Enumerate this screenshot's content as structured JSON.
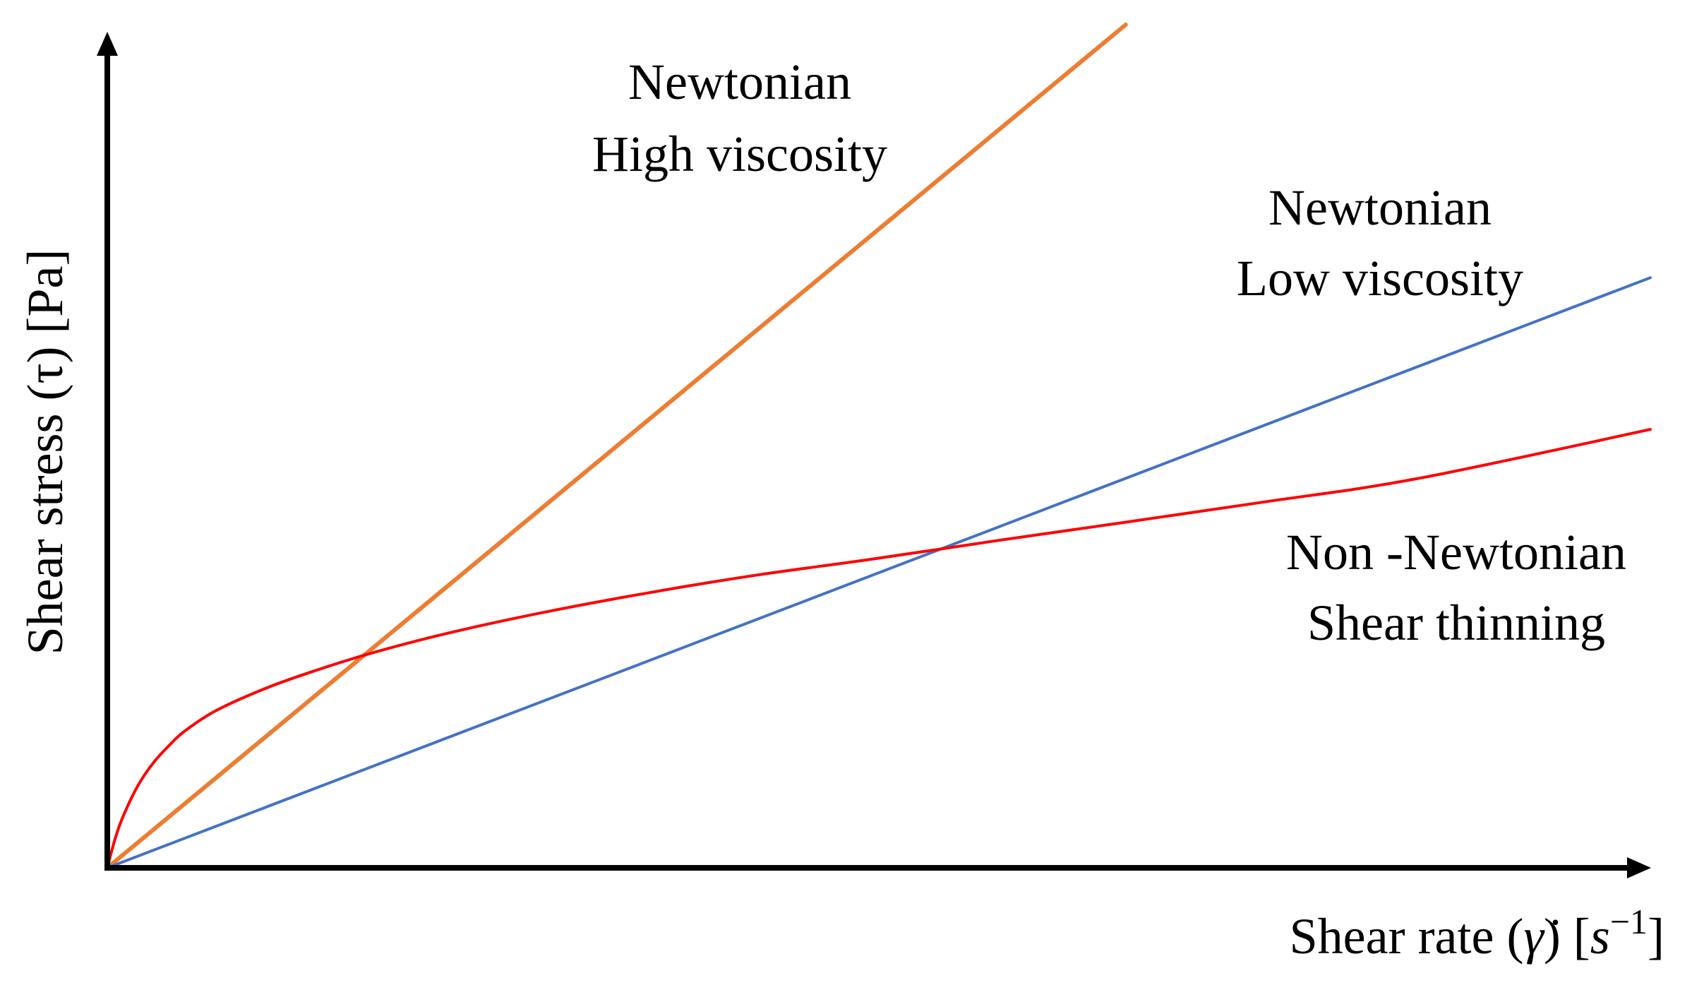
{
  "chart_data": {
    "type": "line",
    "title": "",
    "xlabel": "Shear rate (γ̇) [s⁻¹]",
    "ylabel": "Shear stress (τ) [Pa]",
    "xlabel_parts": {
      "prefix": "Shear rate (",
      "symbol": "γ̇",
      "mid": ") [",
      "unit": "s",
      "exp": "−1",
      "suffix": "]"
    },
    "xlim": [
      0,
      100
    ],
    "ylim": [
      0,
      100
    ],
    "grid": false,
    "ticks": false,
    "series": [
      {
        "name": "Newtonian High viscosity",
        "label_lines": [
          "Newtonian",
          "High viscosity"
        ],
        "color": "#ED7D31",
        "model": "linear",
        "x": [
          0,
          66
        ],
        "y": [
          0,
          100
        ]
      },
      {
        "name": "Newtonian Low viscosity",
        "label_lines": [
          "Newtonian",
          "Low viscosity"
        ],
        "color": "#4472C4",
        "model": "linear",
        "x": [
          0,
          100
        ],
        "y": [
          0,
          70
        ]
      },
      {
        "name": "Non -Newtonian Shear thinning",
        "label_lines": [
          "Non -Newtonian",
          "Shear thinning"
        ],
        "color": "#FF0000",
        "model": "curve",
        "x": [
          0,
          0.5,
          1,
          2,
          3,
          4,
          5,
          7,
          10,
          13,
          17,
          22,
          28,
          35,
          42,
          49.5,
          58,
          66,
          75,
          85,
          100
        ],
        "y": [
          0,
          3.4,
          6.0,
          9.8,
          12.5,
          14.5,
          16.2,
          18.6,
          21.1,
          23.1,
          25.4,
          27.8,
          30.2,
          32.6,
          34.7,
          36.6,
          38.9,
          41.0,
          43.4,
          46.2,
          52.0
        ]
      }
    ]
  }
}
